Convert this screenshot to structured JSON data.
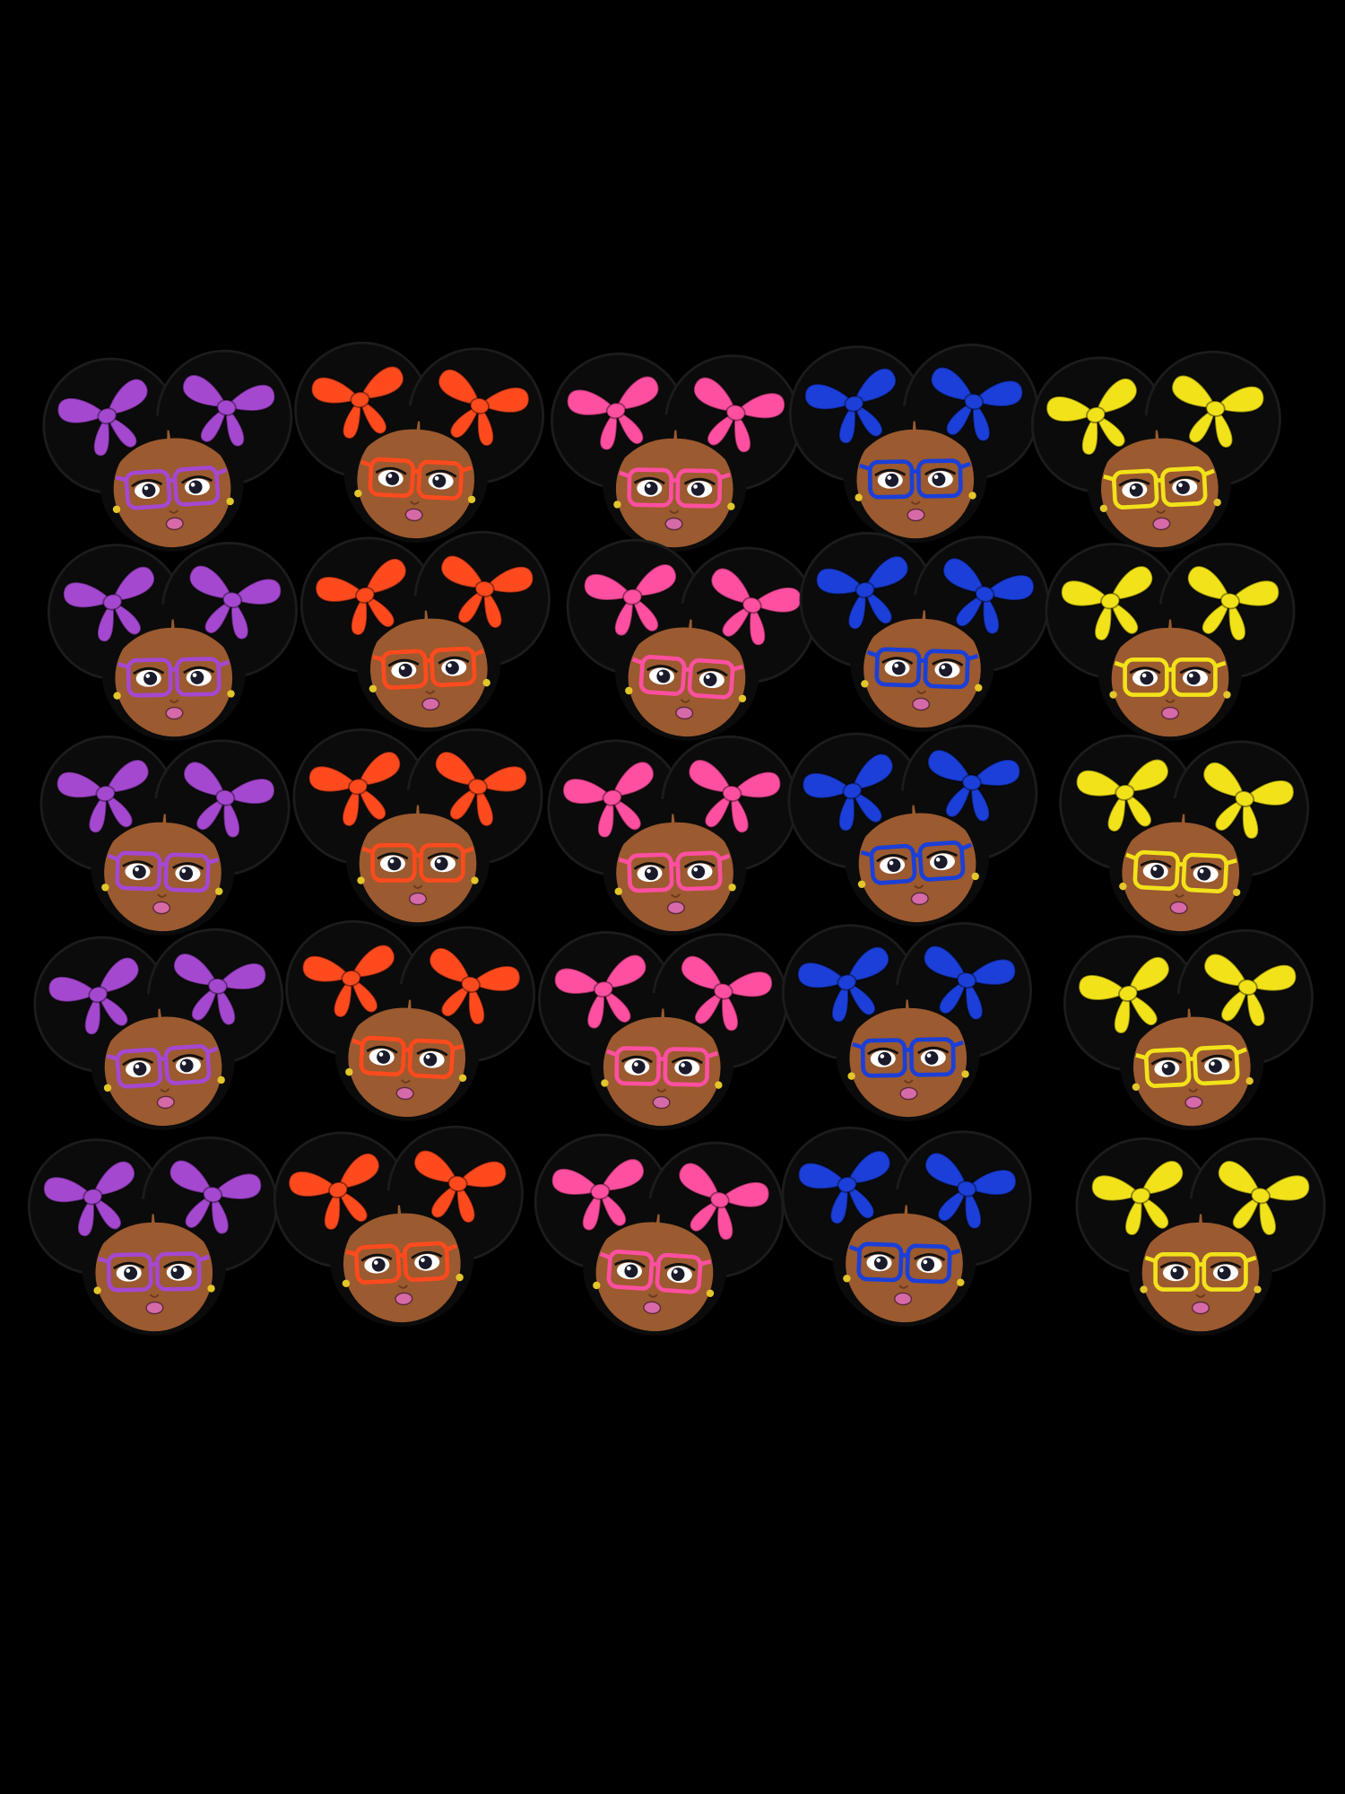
{
  "background_color": "#000000",
  "skin_color": "#9b5a2f",
  "hair_color": "#0b0b0b",
  "lip_color": "#d66aa8",
  "earring_color": "#e3c62a",
  "grid": {
    "rows": 5,
    "columns": 5
  },
  "columns": [
    {
      "name": "purple",
      "color": "#a548d0"
    },
    {
      "name": "orange-red",
      "color": "#ff4a1e"
    },
    {
      "name": "pink",
      "color": "#ff4fa0"
    },
    {
      "name": "blue",
      "color": "#1b3fd8"
    },
    {
      "name": "yellow",
      "color": "#f2e21a"
    }
  ]
}
